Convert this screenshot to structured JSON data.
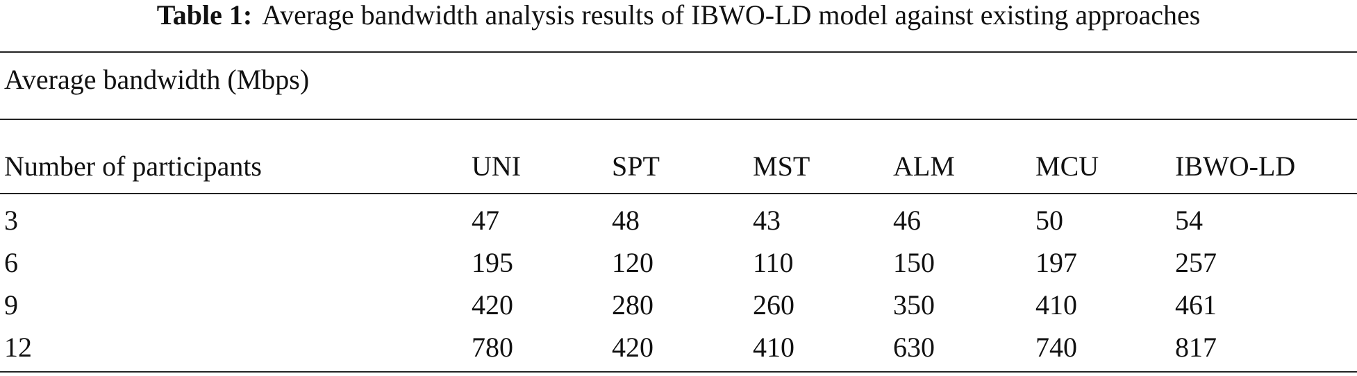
{
  "table": {
    "label": "Table 1:",
    "title": "Average bandwidth analysis results of IBWO-LD model against existing approaches",
    "caption": "Average bandwidth (Mbps)",
    "header": [
      "Number of participants",
      "UNI",
      "SPT",
      "MST",
      "ALM",
      "MCU",
      "IBWO-LD"
    ],
    "rows": [
      [
        3,
        47,
        48,
        43,
        46,
        50,
        54
      ],
      [
        6,
        195,
        120,
        110,
        150,
        197,
        257
      ],
      [
        9,
        420,
        280,
        260,
        350,
        410,
        461
      ],
      [
        12,
        780,
        420,
        410,
        630,
        740,
        817
      ]
    ]
  }
}
